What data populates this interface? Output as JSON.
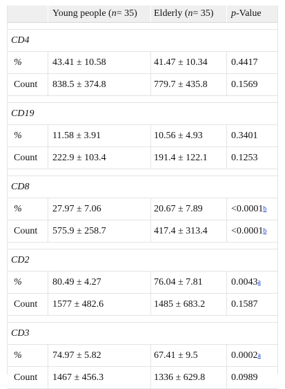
{
  "header": {
    "col0": "",
    "young_prefix": "Young people (",
    "young_n": "n",
    "young_suffix": " = 35)",
    "elderly_prefix": "Elderly (",
    "elderly_n": "n",
    "elderly_suffix": " = 35)",
    "p_prefix": "p",
    "p_suffix": "-Value"
  },
  "groups": [
    {
      "name": "CD4",
      "rows": [
        {
          "label": "%",
          "young": "43.41 ± 10.58",
          "elderly": "41.47 ± 10.34",
          "p": "0.4417",
          "mark": ""
        },
        {
          "label": "Count",
          "young": "838.5 ± 374.8",
          "elderly": "779.7 ± 435.8",
          "p": "0.1569",
          "mark": ""
        }
      ]
    },
    {
      "name": "CD19",
      "rows": [
        {
          "label": "%",
          "young": "11.58 ± 3.91",
          "elderly": "10.56 ± 4.93",
          "p": "0.3401",
          "mark": ""
        },
        {
          "label": "Count",
          "young": "222.9 ± 103.4",
          "elderly": "191.4 ± 122.1",
          "p": "0.1253",
          "mark": ""
        }
      ]
    },
    {
      "name": "CD8",
      "rows": [
        {
          "label": "%",
          "young": "27.97 ± 7.06",
          "elderly": "20.67 ± 7.89",
          "p": "<0.0001",
          "mark": "b"
        },
        {
          "label": "Count",
          "young": "575.9 ± 258.7",
          "elderly": "417.4 ± 313.4",
          "p": "<0.0001",
          "mark": "b"
        }
      ]
    },
    {
      "name": "CD2",
      "rows": [
        {
          "label": "%",
          "young": "80.49 ± 4.27",
          "elderly": "76.04 ± 7.81",
          "p": "0.0043",
          "mark": "a"
        },
        {
          "label": "Count",
          "young": "1577 ± 482.6",
          "elderly": "1485 ± 683.2",
          "p": "0.1587",
          "mark": ""
        }
      ]
    },
    {
      "name": "CD3",
      "rows": [
        {
          "label": "%",
          "young": "74.97 ± 5.82",
          "elderly": "67.41 ± 9.5",
          "p": "0.0002",
          "mark": "a"
        },
        {
          "label": "Count",
          "young": "1467 ± 456.3",
          "elderly": "1336 ± 629.8",
          "p": "0.0989",
          "mark": ""
        }
      ]
    }
  ]
}
